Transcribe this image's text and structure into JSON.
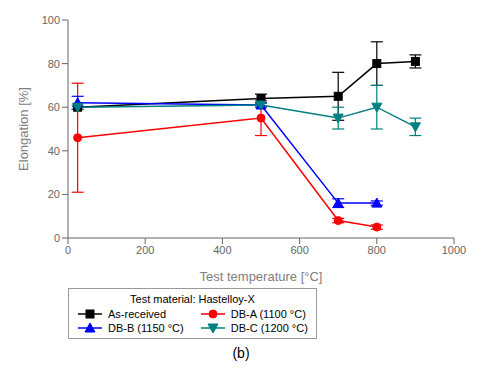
{
  "chart_data": {
    "type": "line",
    "title": "(b)",
    "xlabel": "Test temperature [°C]",
    "ylabel": "Elongation [%]",
    "xlim": [
      0,
      1000
    ],
    "ylim": [
      0,
      100
    ],
    "xticks": [
      0,
      200,
      400,
      600,
      800,
      1000
    ],
    "yticks": [
      0,
      20,
      40,
      60,
      80,
      100
    ],
    "grid": false,
    "legend": "lower left",
    "legend_title": "Test material: Hastelloy-X",
    "series": [
      {
        "name": "As-received",
        "color": "black",
        "marker": "square",
        "line_style": "solid",
        "x": [
          25,
          500,
          700,
          800,
          900
        ],
        "values": [
          60,
          64,
          65,
          80,
          81
        ],
        "yerr": [
          0,
          2,
          11,
          10,
          3
        ]
      },
      {
        "name": "DB-A (1100 °C)",
        "color": "red",
        "marker": "circle",
        "line_style": "solid",
        "x": [
          25,
          500,
          700,
          800
        ],
        "values": [
          46,
          55,
          8,
          5
        ],
        "yerr": [
          25,
          8,
          1,
          1
        ]
      },
      {
        "name": "DB-B (1150 °C)",
        "color": "blue",
        "marker": "triangle-up",
        "line_style": "solid",
        "x": [
          25,
          500,
          700,
          800
        ],
        "values": [
          62,
          61,
          16,
          16
        ],
        "yerr": [
          3,
          1,
          2,
          1
        ]
      },
      {
        "name": "DB-C (1200 °C)",
        "color": "#008080",
        "marker": "triangle-down",
        "line_style": "solid",
        "x": [
          25,
          500,
          700,
          800,
          900
        ],
        "values": [
          60,
          61,
          55,
          60,
          51
        ],
        "yerr": [
          1,
          1,
          5,
          10,
          4
        ]
      }
    ]
  }
}
